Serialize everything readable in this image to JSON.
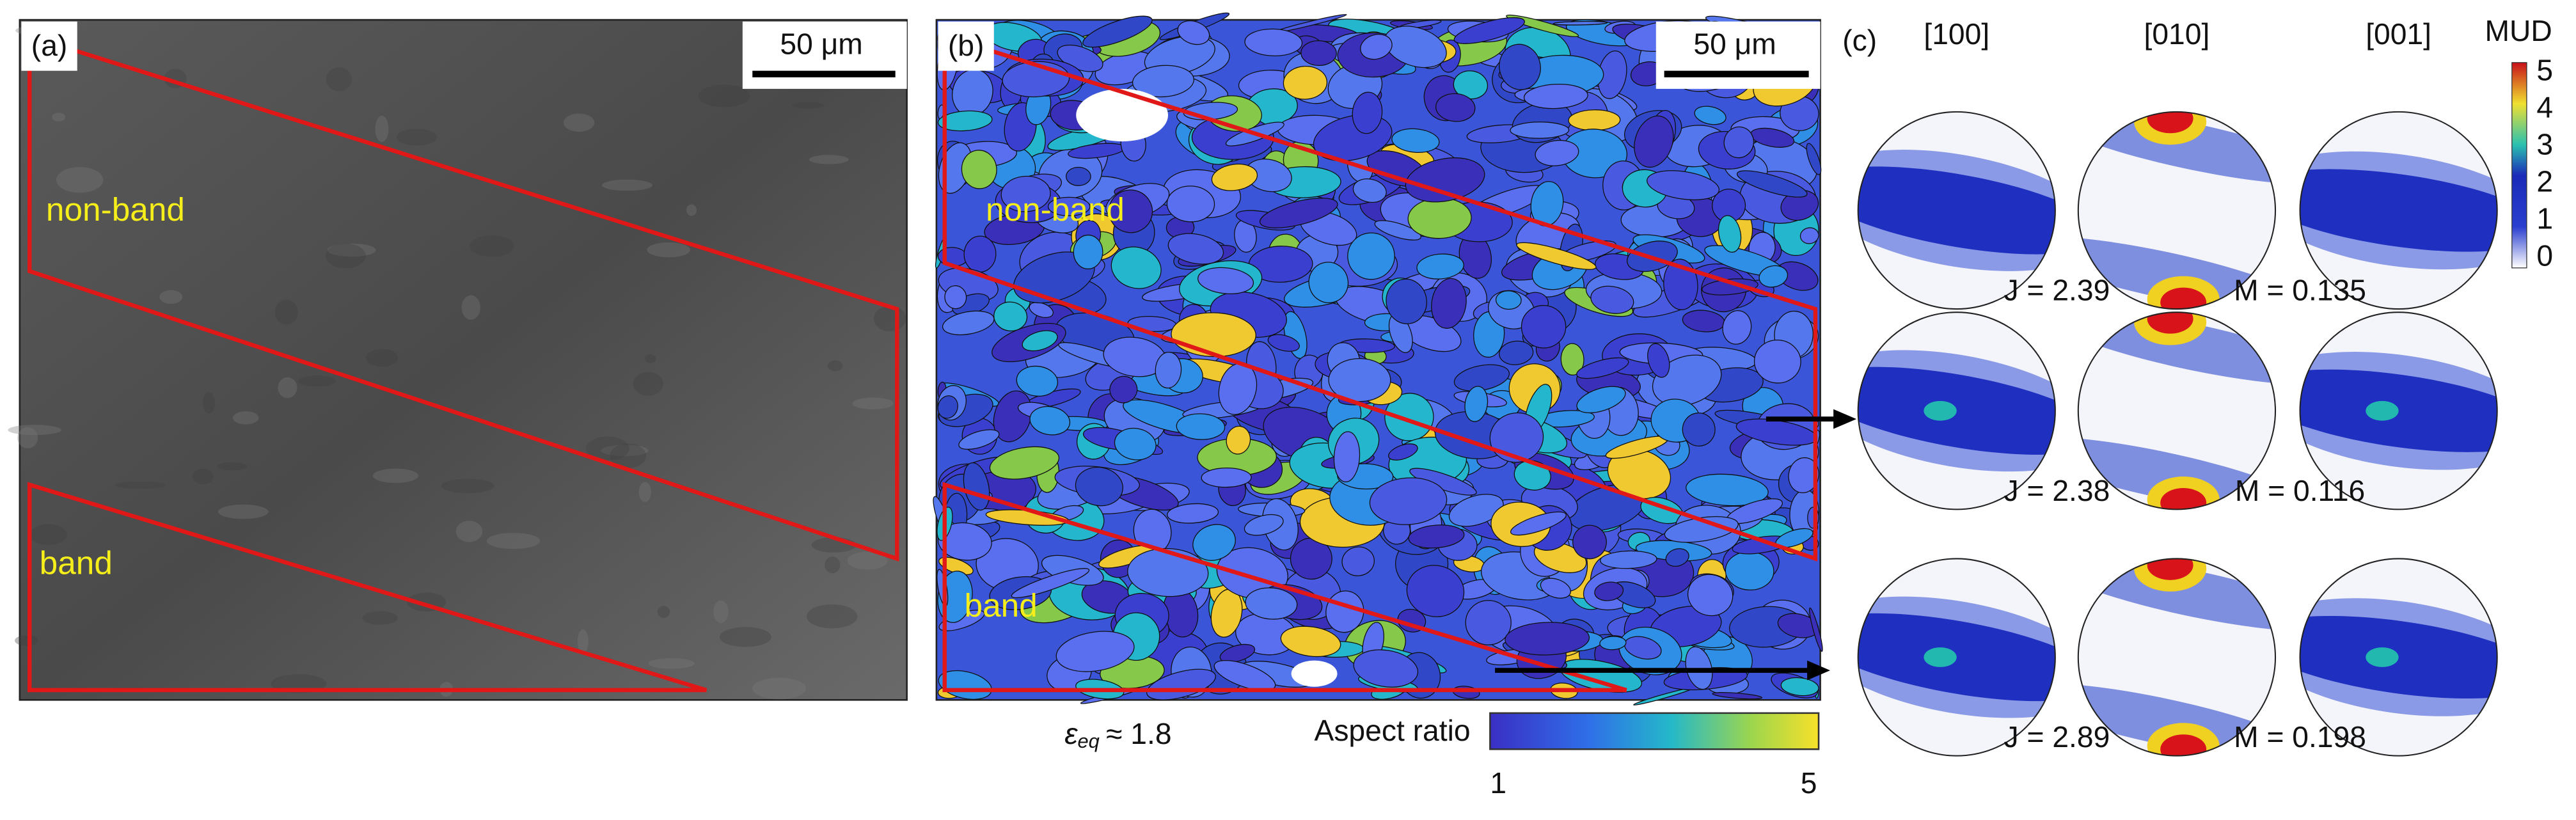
{
  "panels": [
    {
      "label": "(a)",
      "scale_bar": "50 μm",
      "regions": [
        "non-band",
        "band"
      ]
    },
    {
      "label": "(b)",
      "scale_bar": "50 μm",
      "regions": [
        "non-band",
        "band"
      ],
      "strain": {
        "symbol": "ε",
        "subscript": "eq",
        "value": "≈ 1.8"
      },
      "colorbar": {
        "title": "Aspect ratio",
        "ticks": [
          "1",
          "5"
        ]
      }
    },
    {
      "label": "(c)",
      "pole_figures": [
        "[100]",
        "[010]",
        "[001]"
      ],
      "colorbar": {
        "title": "MUD",
        "ticks": [
          "5",
          "4",
          "3",
          "2",
          "1",
          "0"
        ]
      },
      "rows": [
        {
          "J": "J = 2.39",
          "M": "M = 0.135"
        },
        {
          "J": "J = 2.38",
          "M": "M = 0.116"
        },
        {
          "J": "J = 2.89",
          "M": "M = 0.198"
        }
      ]
    }
  ]
}
